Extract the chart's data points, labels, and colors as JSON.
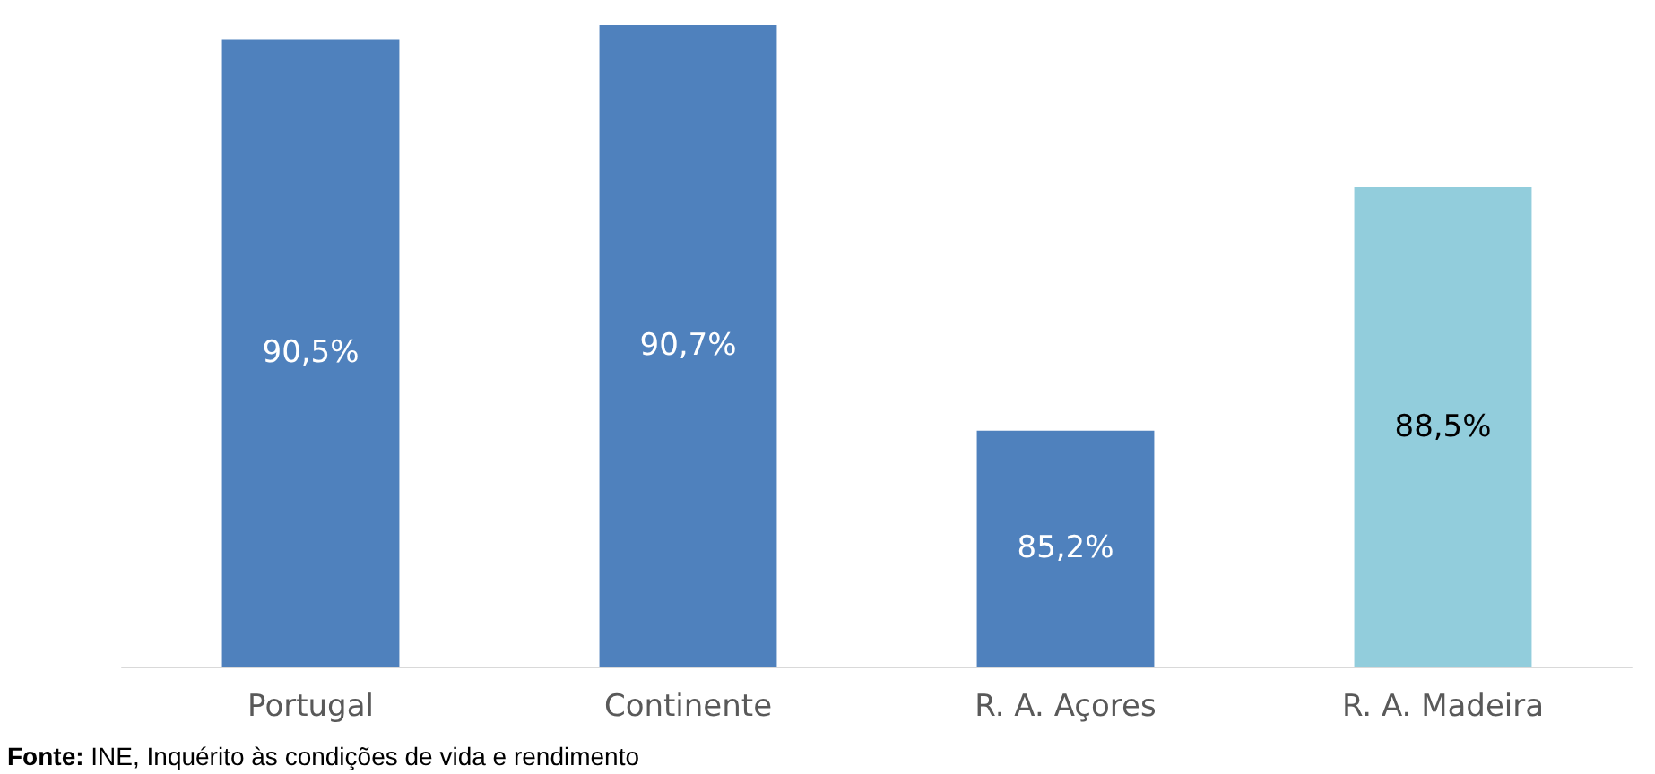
{
  "chart_data": {
    "type": "bar",
    "categories": [
      "Portugal",
      "Continente",
      "R. A. Açores",
      "R. A. Madeira"
    ],
    "values": [
      90.5,
      90.7,
      85.2,
      88.5
    ],
    "colors": [
      "#4f81bd",
      "#4f81bd",
      "#4f81bd",
      "#92cddc"
    ],
    "value_labels": [
      "90,5%",
      "90,7%",
      "85,2%",
      "88,5%"
    ],
    "ylim": [
      82,
      90.7
    ],
    "tick_labels": "x",
    "grid": false,
    "annotations": [
      "Fonte: INE, Inquérito às condições de vida e rendimento"
    ]
  }
}
